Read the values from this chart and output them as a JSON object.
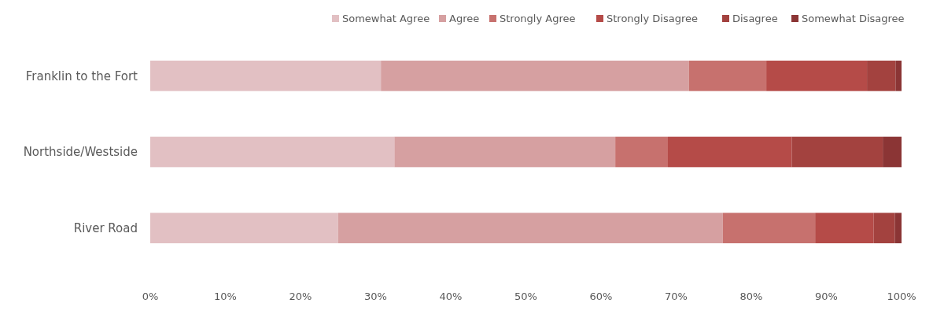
{
  "chart_data": {
    "type": "bar",
    "orientation": "horizontal",
    "stacked": true,
    "legend": "top right",
    "grid": false,
    "categories": [
      "Franklin to the Fort",
      "Northside/Westside",
      "River Road"
    ],
    "series": [
      {
        "name": "Somewhat Agree",
        "color": "#e2c0c3",
        "values": [
          30.7,
          32.5,
          25.0
        ]
      },
      {
        "name": "Agree",
        "color": "#d6a0a1",
        "values": [
          41.0,
          29.4,
          51.2
        ]
      },
      {
        "name": "Strongly Agree",
        "color": "#c7716e",
        "values": [
          10.3,
          7.0,
          12.3
        ]
      },
      {
        "name": "Strongly Disagree",
        "color": "#b54b48",
        "values": [
          13.4,
          16.5,
          7.8
        ]
      },
      {
        "name": "Disagree",
        "color": "#a3423f",
        "values": [
          3.8,
          12.1,
          2.8
        ]
      },
      {
        "name": "Somewhat Disagree",
        "color": "#8b3535",
        "values": [
          0.8,
          2.5,
          0.9
        ]
      }
    ],
    "xlim": [
      0,
      100
    ],
    "xticks": [
      {
        "value": 0,
        "label": "0%"
      },
      {
        "value": 10,
        "label": "10%"
      },
      {
        "value": 20,
        "label": "20%"
      },
      {
        "value": 30,
        "label": "30%"
      },
      {
        "value": 40,
        "label": "40%"
      },
      {
        "value": 50,
        "label": "50%"
      },
      {
        "value": 60,
        "label": "60%"
      },
      {
        "value": 70,
        "label": "70%"
      },
      {
        "value": 80,
        "label": "80%"
      },
      {
        "value": 90,
        "label": "90%"
      },
      {
        "value": 100,
        "label": "100%"
      }
    ]
  }
}
